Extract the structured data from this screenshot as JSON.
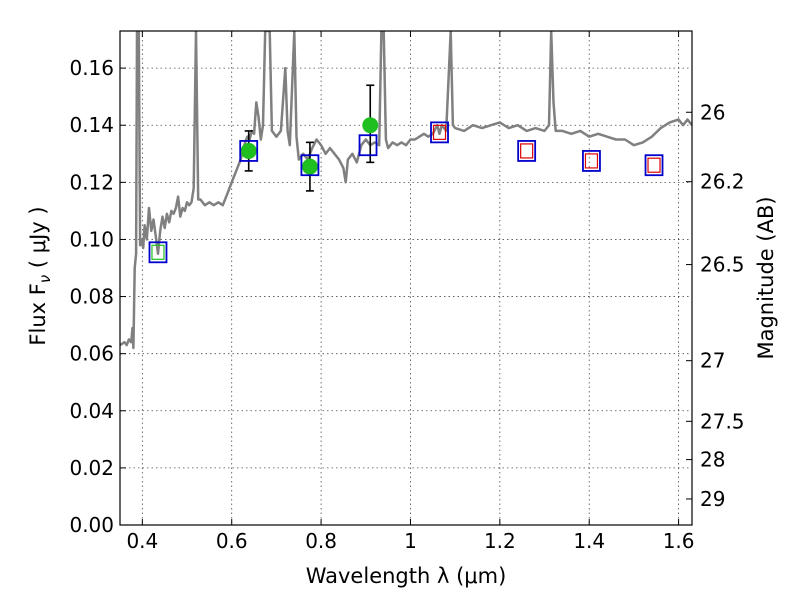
{
  "chart_data": {
    "type": "scatter",
    "title": "",
    "xlabel": "Wavelength  λ (μm)",
    "ylabel": "Flux  F",
    "ylabel_sub": "ν",
    "ylabel_unit": "  ( μJy )",
    "y2label": "Magnitude (AB)",
    "xlim": [
      0.35,
      1.63
    ],
    "ylim": [
      0.0,
      0.173
    ],
    "grid": true,
    "x_ticks": [
      {
        "value": 0.4,
        "label": "0.4"
      },
      {
        "value": 0.6,
        "label": "0.6"
      },
      {
        "value": 0.8,
        "label": "0.8"
      },
      {
        "value": 1.0,
        "label": "1"
      },
      {
        "value": 1.2,
        "label": "1.2"
      },
      {
        "value": 1.4,
        "label": "1.4"
      },
      {
        "value": 1.6,
        "label": "1.6"
      }
    ],
    "y_ticks": [
      {
        "value": 0.0,
        "label": "0.00"
      },
      {
        "value": 0.02,
        "label": "0.02"
      },
      {
        "value": 0.04,
        "label": "0.04"
      },
      {
        "value": 0.06,
        "label": "0.06"
      },
      {
        "value": 0.08,
        "label": "0.08"
      },
      {
        "value": 0.1,
        "label": "0.10"
      },
      {
        "value": 0.12,
        "label": "0.12"
      },
      {
        "value": 0.14,
        "label": "0.14"
      },
      {
        "value": 0.16,
        "label": "0.16"
      }
    ],
    "y2_ticks": [
      {
        "mag": 26.0,
        "label": "26"
      },
      {
        "mag": 26.2,
        "label": "26.2"
      },
      {
        "mag": 26.5,
        "label": "26.5"
      },
      {
        "mag": 27.0,
        "label": "27"
      },
      {
        "mag": 27.5,
        "label": "27.5"
      },
      {
        "mag": 28.0,
        "label": "28"
      },
      {
        "mag": 29.0,
        "label": "29"
      }
    ],
    "model_spectrum": {
      "color": "#808080",
      "points": [
        [
          0.35,
          0.063
        ],
        [
          0.36,
          0.064
        ],
        [
          0.365,
          0.063
        ],
        [
          0.37,
          0.065
        ],
        [
          0.375,
          0.064
        ],
        [
          0.378,
          0.069
        ],
        [
          0.38,
          0.062
        ],
        [
          0.383,
          0.09
        ],
        [
          0.386,
          0.095
        ],
        [
          0.388,
          0.173
        ],
        [
          0.392,
          0.173
        ],
        [
          0.395,
          0.098
        ],
        [
          0.398,
          0.1
        ],
        [
          0.402,
          0.097
        ],
        [
          0.405,
          0.105
        ],
        [
          0.41,
          0.1
        ],
        [
          0.415,
          0.111
        ],
        [
          0.42,
          0.103
        ],
        [
          0.425,
          0.107
        ],
        [
          0.43,
          0.101
        ],
        [
          0.435,
          0.095
        ],
        [
          0.44,
          0.103
        ],
        [
          0.445,
          0.108
        ],
        [
          0.45,
          0.104
        ],
        [
          0.455,
          0.109
        ],
        [
          0.46,
          0.106
        ],
        [
          0.465,
          0.11
        ],
        [
          0.47,
          0.109
        ],
        [
          0.475,
          0.111
        ],
        [
          0.48,
          0.115
        ],
        [
          0.485,
          0.108
        ],
        [
          0.49,
          0.111
        ],
        [
          0.495,
          0.11
        ],
        [
          0.5,
          0.113
        ],
        [
          0.505,
          0.112
        ],
        [
          0.51,
          0.113
        ],
        [
          0.515,
          0.118
        ],
        [
          0.52,
          0.173
        ],
        [
          0.525,
          0.114
        ],
        [
          0.53,
          0.114
        ],
        [
          0.54,
          0.112
        ],
        [
          0.55,
          0.113
        ],
        [
          0.56,
          0.112
        ],
        [
          0.57,
          0.113
        ],
        [
          0.58,
          0.112
        ],
        [
          0.59,
          0.116
        ],
        [
          0.6,
          0.12
        ],
        [
          0.61,
          0.124
        ],
        [
          0.62,
          0.128
        ],
        [
          0.63,
          0.134
        ],
        [
          0.635,
          0.136
        ],
        [
          0.64,
          0.135
        ],
        [
          0.645,
          0.138
        ],
        [
          0.65,
          0.137
        ],
        [
          0.655,
          0.148
        ],
        [
          0.66,
          0.143
        ],
        [
          0.665,
          0.135
        ],
        [
          0.67,
          0.14
        ],
        [
          0.675,
          0.173
        ],
        [
          0.68,
          0.173
        ],
        [
          0.685,
          0.173
        ],
        [
          0.69,
          0.138
        ],
        [
          0.7,
          0.136
        ],
        [
          0.71,
          0.138
        ],
        [
          0.72,
          0.16
        ],
        [
          0.725,
          0.138
        ],
        [
          0.73,
          0.133
        ],
        [
          0.74,
          0.173
        ],
        [
          0.745,
          0.136
        ],
        [
          0.75,
          0.128
        ],
        [
          0.76,
          0.13
        ],
        [
          0.77,
          0.128
        ],
        [
          0.78,
          0.132
        ],
        [
          0.79,
          0.135
        ],
        [
          0.8,
          0.133
        ],
        [
          0.81,
          0.13
        ],
        [
          0.82,
          0.132
        ],
        [
          0.83,
          0.13
        ],
        [
          0.84,
          0.128
        ],
        [
          0.85,
          0.125
        ],
        [
          0.855,
          0.12
        ],
        [
          0.86,
          0.128
        ],
        [
          0.87,
          0.13
        ],
        [
          0.88,
          0.127
        ],
        [
          0.89,
          0.133
        ],
        [
          0.9,
          0.135
        ],
        [
          0.91,
          0.133
        ],
        [
          0.92,
          0.134
        ],
        [
          0.93,
          0.133
        ],
        [
          0.935,
          0.173
        ],
        [
          0.94,
          0.173
        ],
        [
          0.945,
          0.135
        ],
        [
          0.95,
          0.132
        ],
        [
          0.96,
          0.134
        ],
        [
          0.97,
          0.133
        ],
        [
          0.98,
          0.134
        ],
        [
          0.99,
          0.133
        ],
        [
          1.0,
          0.135
        ],
        [
          1.01,
          0.135
        ],
        [
          1.02,
          0.136
        ],
        [
          1.03,
          0.137
        ],
        [
          1.04,
          0.136
        ],
        [
          1.05,
          0.137
        ],
        [
          1.06,
          0.14
        ],
        [
          1.065,
          0.137
        ],
        [
          1.07,
          0.14
        ],
        [
          1.08,
          0.138
        ],
        [
          1.09,
          0.173
        ],
        [
          1.095,
          0.14
        ],
        [
          1.1,
          0.139
        ],
        [
          1.12,
          0.138
        ],
        [
          1.14,
          0.14
        ],
        [
          1.16,
          0.139
        ],
        [
          1.18,
          0.14
        ],
        [
          1.2,
          0.141
        ],
        [
          1.22,
          0.139
        ],
        [
          1.24,
          0.14
        ],
        [
          1.26,
          0.138
        ],
        [
          1.28,
          0.139
        ],
        [
          1.3,
          0.138
        ],
        [
          1.31,
          0.14
        ],
        [
          1.315,
          0.173
        ],
        [
          1.32,
          0.148
        ],
        [
          1.325,
          0.138
        ],
        [
          1.34,
          0.138
        ],
        [
          1.36,
          0.137
        ],
        [
          1.38,
          0.138
        ],
        [
          1.4,
          0.136
        ],
        [
          1.42,
          0.137
        ],
        [
          1.44,
          0.136
        ],
        [
          1.46,
          0.135
        ],
        [
          1.48,
          0.135
        ],
        [
          1.5,
          0.133
        ],
        [
          1.52,
          0.134
        ],
        [
          1.54,
          0.136
        ],
        [
          1.56,
          0.139
        ],
        [
          1.58,
          0.141
        ],
        [
          1.6,
          0.142
        ],
        [
          1.61,
          0.14
        ],
        [
          1.62,
          0.142
        ],
        [
          1.63,
          0.14
        ]
      ]
    },
    "series": [
      {
        "marker": "circle",
        "color": "#1fbf1f",
        "points": [
          {
            "x": 0.638,
            "y": 0.131,
            "err_low": 0.124,
            "err_high": 0.138
          },
          {
            "x": 0.775,
            "y": 0.1255,
            "err_low": 0.117,
            "err_high": 0.134
          },
          {
            "x": 0.91,
            "y": 0.14,
            "err_low": 0.127,
            "err_high": 0.154
          }
        ]
      },
      {
        "marker": "open-square",
        "color": "#0000cc",
        "points": [
          {
            "x": 0.435,
            "y": 0.0955
          },
          {
            "x": 0.638,
            "y": 0.131
          },
          {
            "x": 0.775,
            "y": 0.126
          },
          {
            "x": 0.905,
            "y": 0.133
          },
          {
            "x": 1.065,
            "y": 0.1375
          },
          {
            "x": 1.26,
            "y": 0.131
          },
          {
            "x": 1.405,
            "y": 0.1275
          },
          {
            "x": 1.545,
            "y": 0.126
          }
        ]
      },
      {
        "marker": "open-square-small",
        "color": "#dd0000",
        "points": [
          {
            "x": 1.065,
            "y": 0.1375
          },
          {
            "x": 1.26,
            "y": 0.131
          },
          {
            "x": 1.405,
            "y": 0.1275
          },
          {
            "x": 1.545,
            "y": 0.126
          }
        ]
      },
      {
        "marker": "open-square-small",
        "color": "#1fbf1f",
        "points": [
          {
            "x": 0.435,
            "y": 0.0955
          }
        ]
      }
    ]
  }
}
